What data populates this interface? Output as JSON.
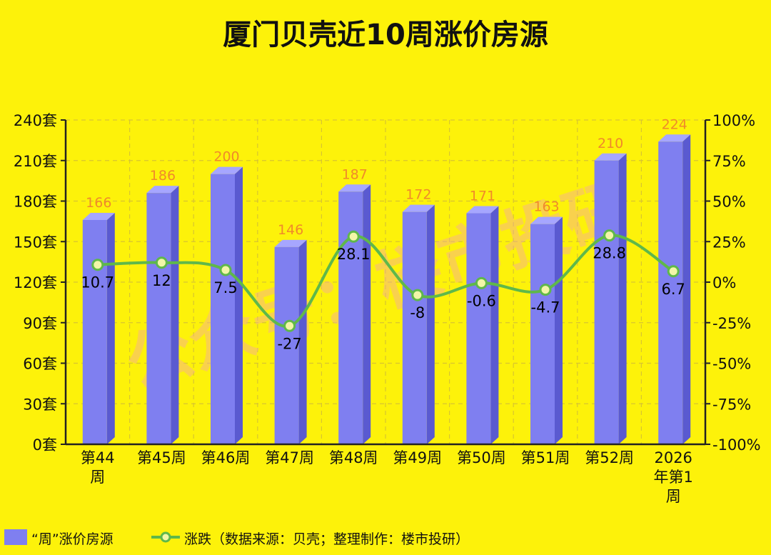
{
  "chart_data": {
    "type": "bar",
    "title": "厦门贝壳近10周涨价房源",
    "categories": [
      "第44\n周",
      "第45周",
      "第46周",
      "第47周",
      "第48周",
      "第49周",
      "第50周",
      "第51周",
      "第52周",
      "2026\n年第1\n周"
    ],
    "series": [
      {
        "name": "“周”涨价房源",
        "type": "bar",
        "axis": "left",
        "values": [
          166,
          186,
          200,
          146,
          187,
          172,
          171,
          163,
          210,
          224
        ],
        "color": "#7f7ff0"
      },
      {
        "name": "涨跌（数据来源：贝壳；整理制作：楼市投研）",
        "type": "line",
        "axis": "right",
        "values": [
          10.7,
          12,
          7.5,
          -27,
          28.1,
          -8,
          -0.6,
          -4.7,
          28.8,
          6.7
        ],
        "color": "#5fb84a"
      }
    ],
    "left_axis": {
      "ylim": [
        0,
        240
      ],
      "ticks": [
        "0套",
        "30套",
        "60套",
        "90套",
        "120套",
        "150套",
        "180套",
        "210套",
        "240套"
      ]
    },
    "right_axis": {
      "ylim": [
        -100,
        100
      ],
      "ticks": [
        "-100%",
        "-75%",
        "-50%",
        "-25%",
        "0%",
        "25%",
        "50%",
        "75%",
        "100%"
      ]
    },
    "grid": true,
    "legend_position": "bottom-left",
    "watermark": "公众号：楼市投研"
  },
  "colors": {
    "background": "#fdf20a",
    "bar_front": "#7f7ff0",
    "bar_side": "#5a5ad0",
    "bar_top": "#a6a6ff",
    "line": "#5fb84a",
    "bar_label": "#f08a2a",
    "line_label": "#000000",
    "grid": "#d8c530",
    "axis": "#222222"
  }
}
